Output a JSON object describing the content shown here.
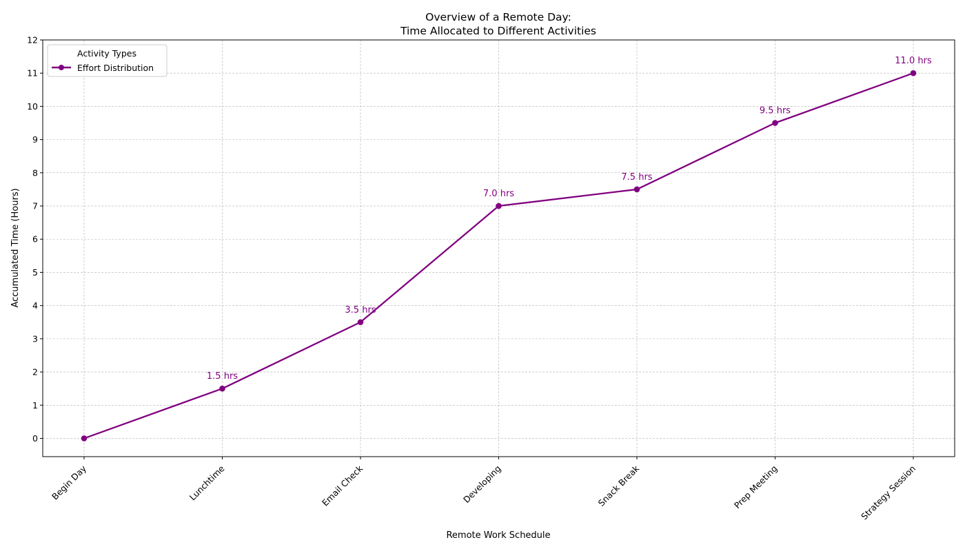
{
  "chart_data": {
    "type": "line",
    "title_line1": "Overview of a Remote Day:",
    "title_line2": "Time Allocated to Different Activities",
    "xlabel": "Remote Work Schedule",
    "ylabel": "Accumulated Time (Hours)",
    "categories": [
      "Begin Day",
      "Lunchtime",
      "Email Check",
      "Developing",
      "Snack Break",
      "Prep Meeting",
      "Strategy Session"
    ],
    "series": [
      {
        "name": "Effort Distribution",
        "values": [
          0,
          1.5,
          3.5,
          7.0,
          7.5,
          9.5,
          11.0
        ],
        "color": "#800080"
      }
    ],
    "data_labels": [
      "",
      "1.5 hrs",
      "3.5 hrs",
      "7.0 hrs",
      "7.5 hrs",
      "9.5 hrs",
      "11.0 hrs"
    ],
    "ylim": [
      -0.55,
      12
    ],
    "yticks": [
      "0",
      "1",
      "2",
      "3",
      "4",
      "5",
      "6",
      "7",
      "8",
      "9",
      "10",
      "11",
      "12"
    ],
    "legend": {
      "title": "Activity Types",
      "placement": "top-left"
    },
    "grid": true
  }
}
